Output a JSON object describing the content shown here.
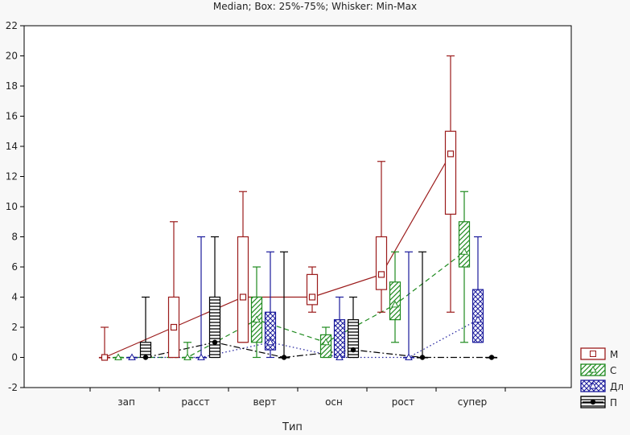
{
  "chart_data": {
    "type": "boxplot",
    "title": "Median; Box: 25%-75%; Whisker: Min-Max",
    "xlabel": "Тип",
    "ylabel": "",
    "ylim": [
      -2,
      22
    ],
    "yticks": [
      -2,
      0,
      2,
      4,
      6,
      8,
      10,
      12,
      14,
      16,
      18,
      20,
      22
    ],
    "categories": [
      "зап",
      "расст",
      "верт",
      "осн",
      "рост",
      "супер"
    ],
    "grid": false,
    "legend_position": "bottom-right",
    "series": [
      {
        "name": "М",
        "color": "#9b1b1b",
        "fill": "none",
        "line": "solid",
        "marker": "square",
        "boxes": [
          {
            "min": 0,
            "q1": 0,
            "median": 0,
            "q3": 0,
            "max": 2
          },
          {
            "min": 0,
            "q1": 0,
            "median": 2,
            "q3": 4,
            "max": 9
          },
          {
            "min": 1,
            "q1": 1,
            "median": 4,
            "q3": 8,
            "max": 11
          },
          {
            "min": 3,
            "q1": 3.5,
            "median": 4,
            "q3": 5.5,
            "max": 6
          },
          {
            "min": 3,
            "q1": 4.5,
            "median": 5.5,
            "q3": 8,
            "max": 13
          },
          {
            "min": 3,
            "q1": 9.5,
            "median": 13.5,
            "q3": 15,
            "max": 20
          }
        ]
      },
      {
        "name": "С",
        "color": "#1f8a1f",
        "fill": "diag",
        "line": "dashed",
        "marker": "triangle",
        "boxes": [
          {
            "min": 0,
            "q1": 0,
            "median": 0,
            "q3": 0,
            "max": 0
          },
          {
            "min": 0,
            "q1": 0,
            "median": 0,
            "q3": 0,
            "max": 1
          },
          {
            "min": 0,
            "q1": 1,
            "median": 2.5,
            "q3": 4,
            "max": 6
          },
          {
            "min": 0,
            "q1": 0,
            "median": 1,
            "q3": 1.5,
            "max": 2
          },
          {
            "min": 1,
            "q1": 2.5,
            "median": 3.5,
            "q3": 5,
            "max": 7
          },
          {
            "min": 1,
            "q1": 6,
            "median": 7,
            "q3": 9,
            "max": 11
          }
        ]
      },
      {
        "name": "Дл",
        "color": "#1a1a9b",
        "fill": "cross",
        "line": "dotted",
        "marker": "triangle",
        "boxes": [
          {
            "min": 0,
            "q1": 0,
            "median": 0,
            "q3": 0,
            "max": 0
          },
          {
            "min": 0,
            "q1": 0,
            "median": 0,
            "q3": 0,
            "max": 8
          },
          {
            "min": 0,
            "q1": 0.5,
            "median": 1,
            "q3": 3,
            "max": 7
          },
          {
            "min": 0,
            "q1": 0,
            "median": 0,
            "q3": 2.5,
            "max": 4
          },
          {
            "min": 0,
            "q1": 0,
            "median": 0,
            "q3": 0,
            "max": 7
          },
          {
            "min": 1,
            "q1": 1,
            "median": 2.5,
            "q3": 4.5,
            "max": 8
          }
        ]
      },
      {
        "name": "П",
        "color": "#000000",
        "fill": "hstripe",
        "line": "dashdot",
        "marker": "circle",
        "boxes": [
          {
            "min": 0,
            "q1": 0,
            "median": 0,
            "q3": 1,
            "max": 4
          },
          {
            "min": 0,
            "q1": 0,
            "median": 1,
            "q3": 4,
            "max": 8
          },
          {
            "min": 0,
            "q1": 0,
            "median": 0,
            "q3": 0,
            "max": 7
          },
          {
            "min": 0,
            "q1": 0,
            "median": 0.5,
            "q3": 2.5,
            "max": 4
          },
          {
            "min": 0,
            "q1": 0,
            "median": 0,
            "q3": 0,
            "max": 7
          },
          {
            "min": 0,
            "q1": 0,
            "median": 0,
            "q3": 0,
            "max": 0
          }
        ]
      }
    ]
  }
}
